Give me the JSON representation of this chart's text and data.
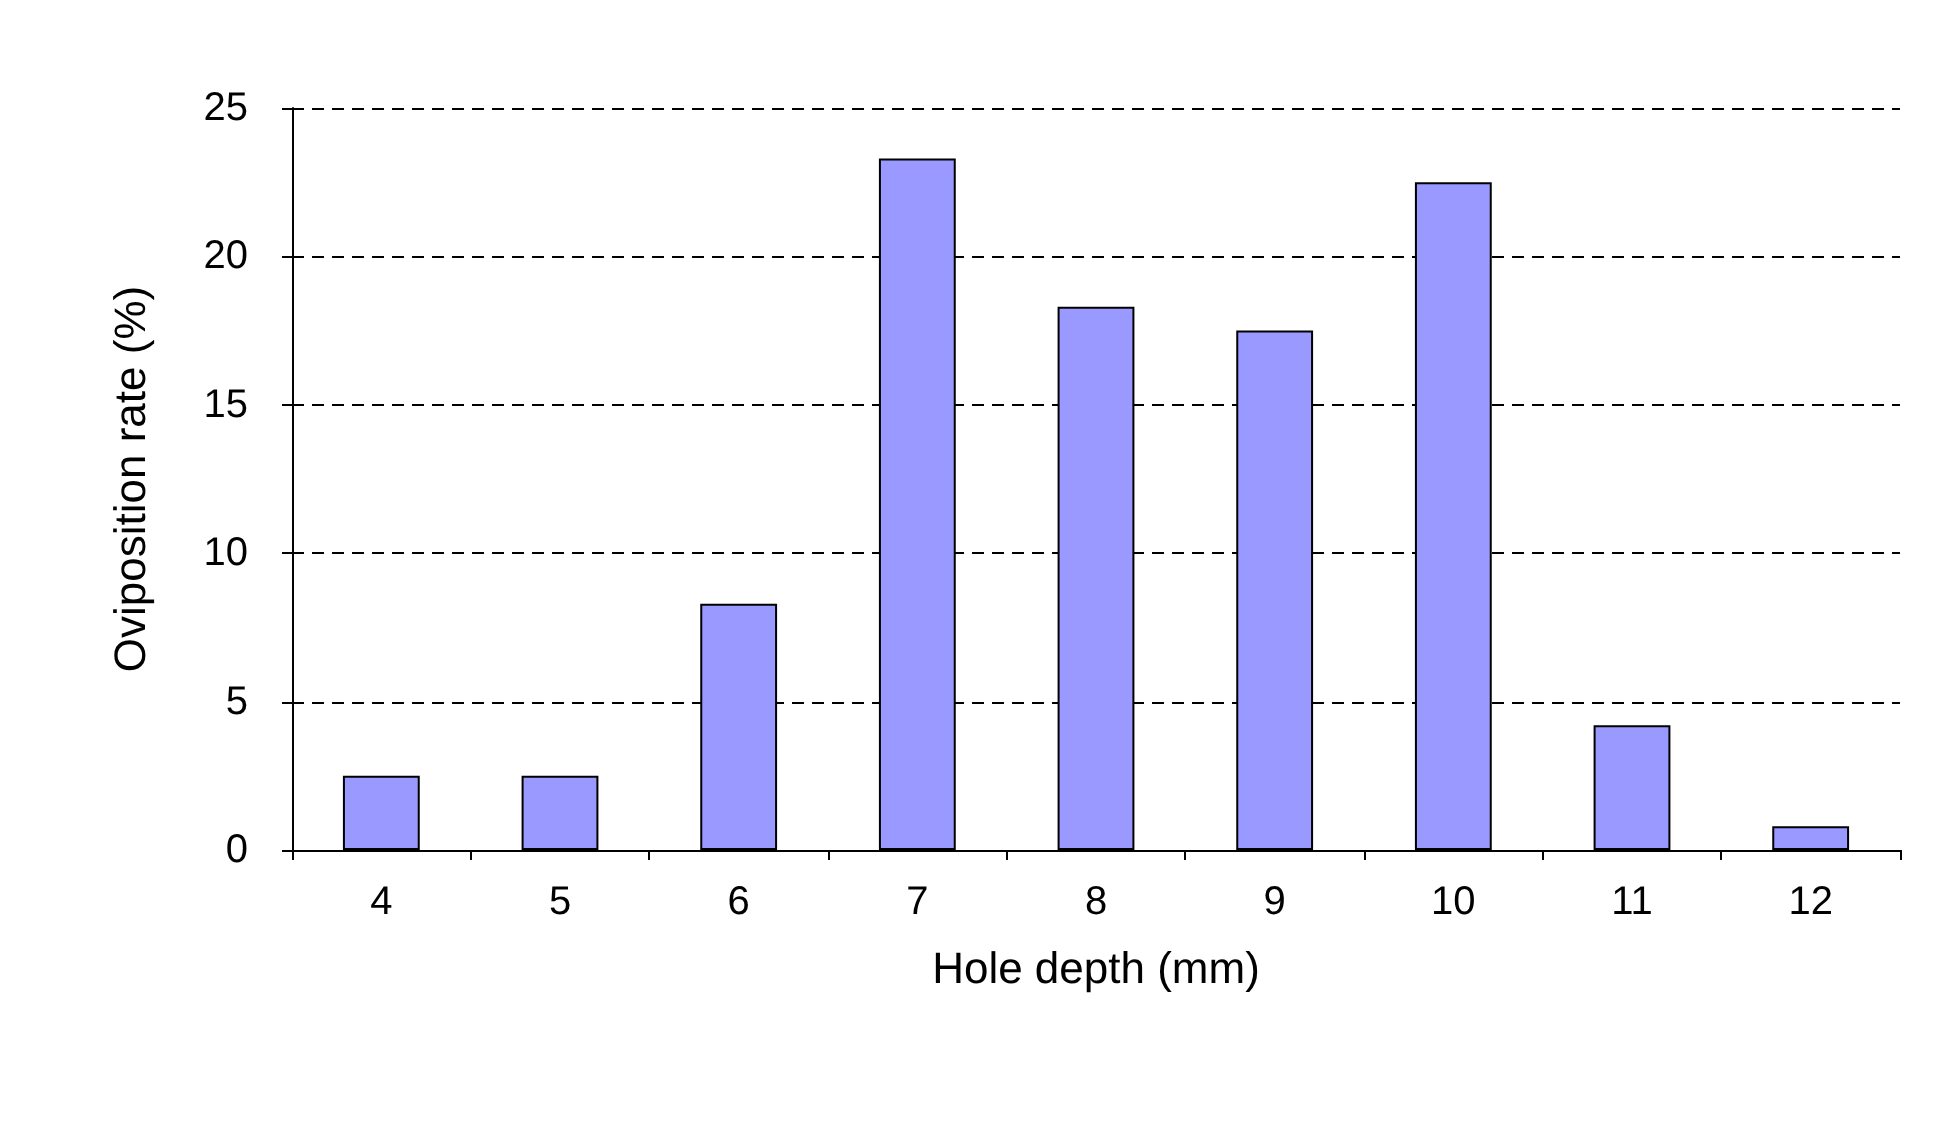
{
  "chart_data": {
    "type": "bar",
    "xlabel": "Hole depth (mm)",
    "ylabel": "Oviposition rate (%)",
    "categories": [
      "4",
      "5",
      "6",
      "7",
      "8",
      "9",
      "10",
      "11",
      "12"
    ],
    "values": [
      2.5,
      2.5,
      8.3,
      23.3,
      18.3,
      17.5,
      22.5,
      4.2,
      0.8
    ],
    "color": "#9999ff",
    "ylim": [
      0,
      25
    ],
    "yticks": [
      0,
      5,
      10,
      15,
      20,
      25
    ],
    "grid": "y"
  }
}
